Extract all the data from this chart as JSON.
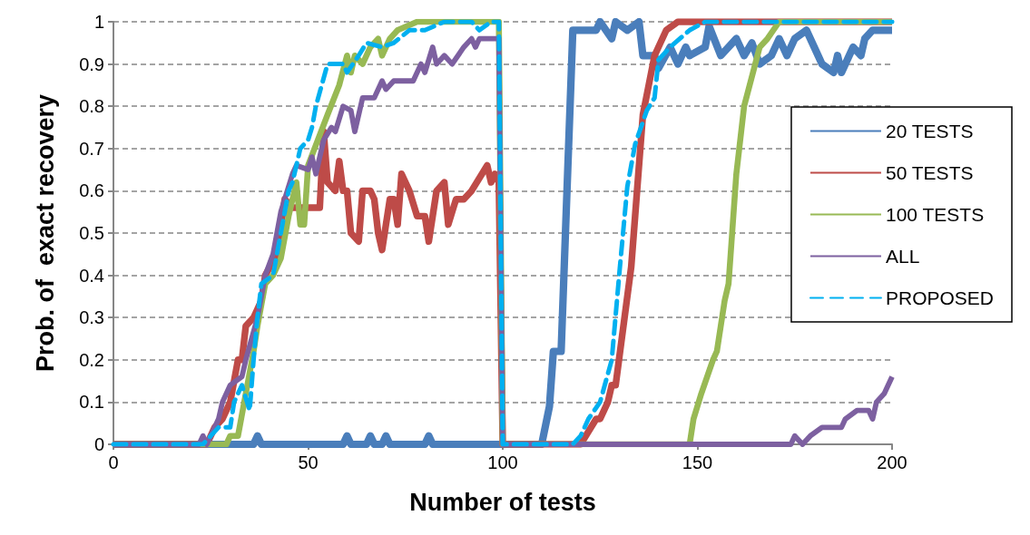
{
  "chart_data": {
    "type": "line",
    "xlabel": "Number of tests",
    "ylabel": "Prob. of  exact recovery",
    "xlim": [
      0,
      200
    ],
    "xticks": [
      0,
      50,
      100,
      150,
      200
    ],
    "ylim": [
      0,
      1
    ],
    "yticks": [
      0,
      0.1,
      0.2,
      0.3,
      0.4,
      0.5,
      0.6,
      0.7,
      0.8,
      0.9,
      1
    ],
    "grid": "y",
    "legend": "right",
    "marker": "none",
    "line_style": "solid",
    "series": [
      {
        "name": "20 TESTS",
        "color": "#4a7ebb",
        "x": [
          0,
          36,
          37,
          38,
          59,
          60,
          61,
          65,
          66,
          67,
          69,
          70,
          71,
          80,
          81,
          82,
          110,
          112,
          113,
          115,
          118,
          124,
          125,
          128,
          129,
          132,
          135,
          136,
          139,
          140,
          143,
          145,
          147,
          148,
          152,
          153,
          156,
          160,
          162,
          164,
          166,
          169,
          171,
          173,
          175,
          178,
          181,
          182,
          185,
          186,
          187,
          189,
          190,
          192,
          193,
          195,
          200
        ],
        "values": [
          0,
          0,
          0.02,
          0,
          0,
          0.02,
          0,
          0,
          0.02,
          0,
          0,
          0.02,
          0,
          0,
          0.02,
          0,
          0,
          0.09,
          0.22,
          0.22,
          0.98,
          0.98,
          1,
          0.96,
          1,
          0.98,
          1,
          0.92,
          0.92,
          0.89,
          0.94,
          0.9,
          0.94,
          0.92,
          0.94,
          0.99,
          0.92,
          0.96,
          0.92,
          0.95,
          0.9,
          0.92,
          0.96,
          0.92,
          0.96,
          0.98,
          0.92,
          0.9,
          0.88,
          0.92,
          0.88,
          0.92,
          0.94,
          0.92,
          0.96,
          0.98,
          0.98
        ]
      },
      {
        "name": "50 TESTS",
        "color": "#be4b48",
        "x": [
          0,
          24,
          26,
          28,
          30,
          32,
          33,
          34,
          36,
          38,
          39,
          42,
          44,
          46,
          48,
          53,
          54,
          55,
          57,
          58,
          59,
          60,
          61,
          63,
          64,
          66,
          67,
          68,
          69,
          71,
          72,
          73,
          74,
          76,
          78,
          80,
          81,
          83,
          85,
          86,
          88,
          90,
          92,
          96,
          97,
          98,
          99,
          100,
          120,
          124,
          125,
          127,
          128,
          129,
          133,
          134,
          136,
          139,
          142,
          145,
          200
        ],
        "values": [
          0,
          0,
          0.04,
          0.06,
          0.1,
          0.2,
          0.2,
          0.28,
          0.3,
          0.34,
          0.4,
          0.45,
          0.58,
          0.56,
          0.56,
          0.56,
          0.74,
          0.62,
          0.6,
          0.67,
          0.6,
          0.6,
          0.5,
          0.48,
          0.6,
          0.6,
          0.58,
          0.5,
          0.46,
          0.58,
          0.58,
          0.52,
          0.64,
          0.6,
          0.54,
          0.54,
          0.48,
          0.6,
          0.62,
          0.52,
          0.58,
          0.58,
          0.6,
          0.66,
          0.62,
          0.64,
          0.62,
          0,
          0,
          0.06,
          0.06,
          0.1,
          0.14,
          0.14,
          0.42,
          0.54,
          0.78,
          0.92,
          0.98,
          1,
          1
        ]
      },
      {
        "name": "100 TESTS",
        "color": "#98b954",
        "x": [
          0,
          29,
          30,
          32,
          34,
          36,
          37,
          39,
          41,
          43,
          45,
          47,
          48,
          49,
          50,
          55,
          58,
          60,
          61,
          62,
          64,
          66,
          68,
          69,
          71,
          73,
          78,
          99,
          100,
          148,
          149,
          151,
          154,
          155,
          157,
          158,
          160,
          162,
          166,
          168,
          171,
          200
        ],
        "values": [
          0,
          0,
          0.02,
          0.02,
          0.12,
          0.22,
          0.28,
          0.38,
          0.4,
          0.44,
          0.54,
          0.62,
          0.52,
          0.52,
          0.66,
          0.78,
          0.85,
          0.92,
          0.88,
          0.92,
          0.9,
          0.94,
          0.96,
          0.92,
          0.96,
          0.98,
          1,
          1,
          0,
          0,
          0.06,
          0.12,
          0.2,
          0.22,
          0.34,
          0.38,
          0.64,
          0.8,
          0.94,
          0.96,
          1,
          1
        ]
      },
      {
        "name": "ALL",
        "color": "#7d60a0",
        "x": [
          0,
          22,
          23,
          24,
          27,
          28,
          30,
          33,
          34,
          37,
          39,
          41,
          43,
          46,
          47,
          50,
          51,
          52,
          54,
          56,
          57,
          59,
          61,
          62,
          64,
          67,
          69,
          70,
          72,
          77,
          79,
          80,
          82,
          83,
          85,
          87,
          90,
          92,
          93,
          94,
          99,
          100,
          174,
          175,
          177,
          179,
          182,
          187,
          188,
          191,
          194,
          195,
          196,
          198,
          200
        ],
        "values": [
          0,
          0,
          0.02,
          0,
          0.06,
          0.1,
          0.14,
          0.16,
          0.2,
          0.3,
          0.4,
          0.45,
          0.55,
          0.64,
          0.66,
          0.65,
          0.68,
          0.64,
          0.72,
          0.75,
          0.74,
          0.8,
          0.79,
          0.74,
          0.82,
          0.82,
          0.86,
          0.84,
          0.86,
          0.86,
          0.9,
          0.88,
          0.94,
          0.9,
          0.92,
          0.9,
          0.94,
          0.96,
          0.94,
          0.96,
          0.96,
          0,
          0,
          0.02,
          0,
          0.02,
          0.04,
          0.04,
          0.06,
          0.08,
          0.08,
          0.06,
          0.1,
          0.12,
          0.16
        ]
      },
      {
        "name": "PROPOSED",
        "color": "#00b0f0",
        "line_style": "dashed",
        "x": [
          0,
          23,
          25,
          27,
          30,
          31,
          33,
          35,
          36,
          37,
          38,
          41,
          43,
          45,
          46,
          48,
          50,
          51,
          52,
          55,
          57,
          59,
          60,
          63,
          65,
          69,
          72,
          76,
          80,
          85,
          92,
          94,
          97,
          99,
          100,
          118,
          120,
          122,
          125,
          128,
          130,
          132,
          134,
          137,
          139,
          140,
          143,
          148,
          152,
          200
        ],
        "values": [
          0,
          0,
          0.02,
          0.04,
          0.04,
          0.1,
          0.14,
          0.08,
          0.2,
          0.3,
          0.38,
          0.4,
          0.5,
          0.6,
          0.62,
          0.7,
          0.72,
          0.75,
          0.8,
          0.9,
          0.9,
          0.9,
          0.88,
          0.92,
          0.95,
          0.94,
          0.95,
          0.98,
          0.98,
          1,
          1,
          0.98,
          1,
          1,
          0,
          0,
          0.02,
          0.06,
          0.1,
          0.2,
          0.41,
          0.61,
          0.71,
          0.79,
          0.82,
          0.91,
          0.94,
          0.98,
          1,
          1
        ]
      }
    ]
  }
}
